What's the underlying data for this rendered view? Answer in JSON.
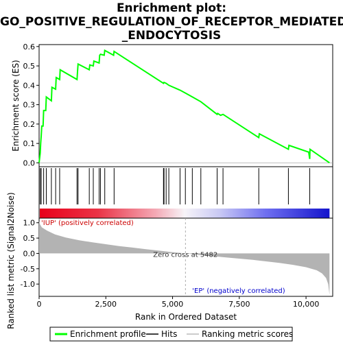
{
  "title_lines": [
    "Enrichment plot:",
    "GO_POSITIVE_REGULATION_OF_RECEPTOR_MEDIATED",
    "_ENDOCYTOSIS"
  ],
  "chart_data": {
    "type": "line",
    "x_label": "Rank in Ordered Dataset",
    "x_ticks": [
      "0",
      "2,500",
      "5,000",
      "7,500",
      "10,000"
    ],
    "x_tick_values": [
      0,
      2500,
      5000,
      7500,
      10000
    ],
    "xlim": [
      0,
      11000
    ],
    "es_panel": {
      "ylabel": "Enrichment score (ES)",
      "y_ticks": [
        "0.0",
        "0.1",
        "0.2",
        "0.3",
        "0.4",
        "0.5",
        "0.6"
      ],
      "y_tick_values": [
        0.0,
        0.1,
        0.2,
        0.3,
        0.4,
        0.5,
        0.6
      ],
      "ylim": [
        -0.02,
        0.61
      ],
      "series_color": "#00ff00",
      "points": [
        [
          0,
          0.0
        ],
        [
          40,
          0.05
        ],
        [
          60,
          0.1
        ],
        [
          80,
          0.14
        ],
        [
          100,
          0.19
        ],
        [
          150,
          0.19
        ],
        [
          170,
          0.27
        ],
        [
          250,
          0.27
        ],
        [
          270,
          0.34
        ],
        [
          460,
          0.32
        ],
        [
          480,
          0.39
        ],
        [
          620,
          0.38
        ],
        [
          640,
          0.44
        ],
        [
          770,
          0.43
        ],
        [
          790,
          0.48
        ],
        [
          1420,
          0.43
        ],
        [
          1440,
          0.47
        ],
        [
          1460,
          0.51
        ],
        [
          1880,
          0.48
        ],
        [
          1900,
          0.505
        ],
        [
          2030,
          0.5
        ],
        [
          2050,
          0.525
        ],
        [
          2250,
          0.515
        ],
        [
          2270,
          0.555
        ],
        [
          2300,
          0.56
        ],
        [
          2440,
          0.555
        ],
        [
          2460,
          0.58
        ],
        [
          2790,
          0.555
        ],
        [
          2810,
          0.575
        ],
        [
          4660,
          0.41
        ],
        [
          4680,
          0.415
        ],
        [
          4760,
          0.41
        ],
        [
          4860,
          0.4
        ],
        [
          5280,
          0.375
        ],
        [
          5480,
          0.36
        ],
        [
          5740,
          0.34
        ],
        [
          6060,
          0.315
        ],
        [
          6670,
          0.25
        ],
        [
          6690,
          0.255
        ],
        [
          6800,
          0.245
        ],
        [
          6890,
          0.25
        ],
        [
          8230,
          0.13
        ],
        [
          8250,
          0.15
        ],
        [
          9340,
          0.07
        ],
        [
          9360,
          0.09
        ],
        [
          10100,
          0.055
        ],
        [
          10140,
          0.02
        ],
        [
          10150,
          0.07
        ],
        [
          10880,
          0.0
        ]
      ]
    },
    "hits": [
      40,
      80,
      170,
      270,
      460,
      620,
      770,
      1420,
      1460,
      1880,
      2030,
      2250,
      2300,
      2460,
      2810,
      4660,
      4680,
      4760,
      4860,
      5280,
      5480,
      5740,
      6060,
      6670,
      6890,
      8230,
      9340,
      10140
    ],
    "metric_panel": {
      "ylabel": "Ranked list metric (Signal2Noise)",
      "y_ticks": [
        "1.0",
        "0.5",
        "0.0",
        "-0.5",
        "-1.0"
      ],
      "y_tick_values": [
        1.0,
        0.5,
        0.0,
        -0.5,
        -1.0
      ],
      "ylim": [
        -1.4,
        1.15
      ],
      "zero_cross_label": "Zero cross at 5482",
      "zero_cross": 5482,
      "up_label": "'IUP' (positively correlated)",
      "down_label": "'EP' (negatively correlated)",
      "up_color": "#cc0000",
      "down_color": "#0000cc",
      "fill_color": "#b3b3b3",
      "profile": [
        [
          0,
          1.05
        ],
        [
          30,
          0.95
        ],
        [
          100,
          0.85
        ],
        [
          300,
          0.74
        ],
        [
          600,
          0.62
        ],
        [
          1000,
          0.52
        ],
        [
          1500,
          0.43
        ],
        [
          2000,
          0.36
        ],
        [
          2500,
          0.3
        ],
        [
          3000,
          0.24
        ],
        [
          3500,
          0.19
        ],
        [
          4000,
          0.14
        ],
        [
          4500,
          0.09
        ],
        [
          5000,
          0.04
        ],
        [
          5482,
          0.0
        ],
        [
          6000,
          -0.05
        ],
        [
          6500,
          -0.09
        ],
        [
          7000,
          -0.13
        ],
        [
          7500,
          -0.17
        ],
        [
          8000,
          -0.21
        ],
        [
          8500,
          -0.26
        ],
        [
          9000,
          -0.31
        ],
        [
          9500,
          -0.37
        ],
        [
          10000,
          -0.45
        ],
        [
          10400,
          -0.55
        ],
        [
          10600,
          -0.65
        ],
        [
          10750,
          -0.8
        ],
        [
          10830,
          -1.0
        ],
        [
          10880,
          -1.35
        ]
      ]
    },
    "legend": [
      {
        "label": "Enrichment profile",
        "color": "#00ff00"
      },
      {
        "label": "Hits",
        "color": "#000000"
      },
      {
        "label": "Ranking metric scores",
        "color": "#bbbbbb"
      }
    ]
  }
}
